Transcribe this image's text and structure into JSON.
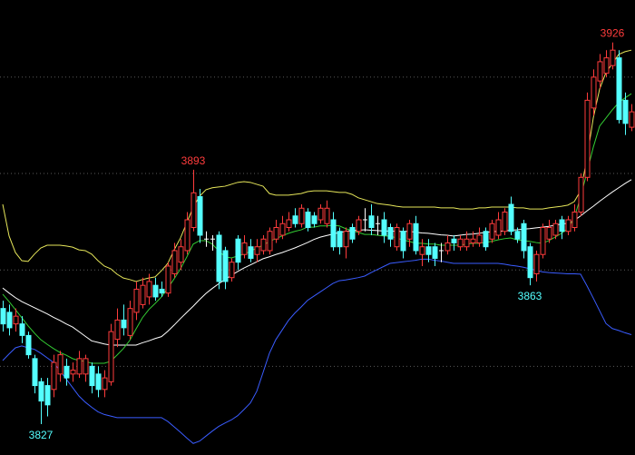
{
  "chart_data": {
    "type": "candlestick",
    "ylim": [
      3819,
      3937
    ],
    "ygrid": [
      3917,
      3892,
      3867,
      3842
    ],
    "grid": true,
    "up_color": "#ff3c3c",
    "down_color": "#54ffff",
    "flat_color": "#ffffff",
    "annotations": [
      3827,
      3893,
      3863,
      3926
    ],
    "ohlc": [
      [
        3857,
        3859,
        3851,
        3853
      ],
      [
        3856,
        3858,
        3850,
        3852
      ],
      [
        3853,
        3857,
        3851,
        3855
      ],
      [
        3853,
        3855,
        3848,
        3850
      ],
      [
        3850,
        3851,
        3844,
        3845
      ],
      [
        3844,
        3845,
        3835,
        3837
      ],
      [
        3838,
        3839,
        3827,
        3833
      ],
      [
        3837,
        3839,
        3829,
        3832
      ],
      [
        3836,
        3845,
        3834,
        3843
      ],
      [
        3840,
        3846,
        3838,
        3845
      ],
      [
        3842,
        3844,
        3837,
        3839
      ],
      [
        3840,
        3843,
        3838,
        3841
      ],
      [
        3840,
        3846,
        3839,
        3844
      ],
      [
        3840,
        3845,
        3838,
        3844
      ],
      [
        3842,
        3843,
        3835,
        3837
      ],
      [
        3840,
        3842,
        3834,
        3836
      ],
      [
        3836,
        3841,
        3834,
        3839
      ],
      [
        3838,
        3853,
        3837,
        3851
      ],
      [
        3849,
        3857,
        3847,
        3854
      ],
      [
        3854,
        3858,
        3850,
        3852
      ],
      [
        3850,
        3859,
        3849,
        3857
      ],
      [
        3856,
        3864,
        3854,
        3862
      ],
      [
        3858,
        3865,
        3857,
        3863
      ],
      [
        3860,
        3866,
        3858,
        3864
      ],
      [
        3863,
        3865,
        3859,
        3860
      ],
      [
        3862,
        3864,
        3860,
        3861
      ],
      [
        3861,
        3869,
        3860,
        3868
      ],
      [
        3866,
        3874,
        3865,
        3872
      ],
      [
        3869,
        3875,
        3867,
        3873
      ],
      [
        3872,
        3882,
        3871,
        3880
      ],
      [
        3878,
        3893,
        3877,
        3887
      ],
      [
        3886,
        3888,
        3874,
        3876
      ],
      [
        3875,
        3877,
        3873,
        3875
      ],
      [
        3875,
        3876,
        3872,
        3875
      ],
      [
        3876,
        3877,
        3862,
        3864
      ],
      [
        3872,
        3873,
        3862,
        3864
      ],
      [
        3865,
        3870,
        3864,
        3869
      ],
      [
        3875,
        3876,
        3867,
        3869
      ],
      [
        3871,
        3876,
        3870,
        3874
      ],
      [
        3873,
        3875,
        3869,
        3870
      ],
      [
        3871,
        3875,
        3869,
        3873
      ],
      [
        3872,
        3876,
        3871,
        3875
      ],
      [
        3872,
        3878,
        3871,
        3877
      ],
      [
        3875,
        3880,
        3874,
        3878
      ],
      [
        3876,
        3881,
        3875,
        3879
      ],
      [
        3878,
        3882,
        3877,
        3880
      ],
      [
        3881,
        3883,
        3878,
        3879
      ],
      [
        3879,
        3884,
        3878,
        3883
      ],
      [
        3882,
        3883,
        3877,
        3878
      ],
      [
        3881,
        3882,
        3878,
        3879
      ],
      [
        3880,
        3884,
        3879,
        3883
      ],
      [
        3879,
        3885,
        3878,
        3883
      ],
      [
        3880,
        3882,
        3872,
        3873
      ],
      [
        3877,
        3878,
        3871,
        3873
      ],
      [
        3873,
        3878,
        3870,
        3877
      ],
      [
        3878,
        3879,
        3874,
        3875
      ],
      [
        3877,
        3881,
        3876,
        3880
      ],
      [
        3880,
        3883,
        3877,
        3880
      ],
      [
        3881,
        3884,
        3876,
        3878
      ],
      [
        3879,
        3881,
        3876,
        3879
      ],
      [
        3880,
        3882,
        3874,
        3876
      ],
      [
        3878,
        3879,
        3873,
        3875
      ],
      [
        3873,
        3879,
        3872,
        3878
      ],
      [
        3877,
        3878,
        3870,
        3872
      ],
      [
        3875,
        3880,
        3873,
        3879
      ],
      [
        3879,
        3881,
        3871,
        3872
      ],
      [
        3871,
        3875,
        3868,
        3873
      ],
      [
        3873,
        3875,
        3869,
        3871
      ],
      [
        3873,
        3874,
        3868,
        3870
      ],
      [
        3872,
        3874,
        3869,
        3872
      ],
      [
        3872,
        3876,
        3871,
        3874
      ],
      [
        3875,
        3876,
        3872,
        3874
      ],
      [
        3873,
        3876,
        3872,
        3875
      ],
      [
        3873,
        3877,
        3872,
        3875
      ],
      [
        3874,
        3877,
        3873,
        3875
      ],
      [
        3874,
        3878,
        3873,
        3876
      ],
      [
        3877,
        3878,
        3872,
        3873
      ],
      [
        3875,
        3880,
        3874,
        3879
      ],
      [
        3876,
        3882,
        3875,
        3880
      ],
      [
        3877,
        3883,
        3876,
        3882
      ],
      [
        3884,
        3886,
        3876,
        3877
      ],
      [
        3877,
        3878,
        3874,
        3875
      ],
      [
        3879,
        3880,
        3870,
        3872
      ],
      [
        3873,
        3874,
        3863,
        3865
      ],
      [
        3866,
        3872,
        3864,
        3871
      ],
      [
        3871,
        3879,
        3870,
        3878
      ],
      [
        3875,
        3880,
        3874,
        3878
      ],
      [
        3876,
        3880,
        3875,
        3879
      ],
      [
        3880,
        3881,
        3875,
        3877
      ],
      [
        3877,
        3881,
        3876,
        3880
      ],
      [
        3878,
        3884,
        3877,
        3882
      ],
      [
        3882,
        3892,
        3881,
        3891
      ],
      [
        3891,
        3913,
        3890,
        3911
      ],
      [
        3909,
        3919,
        3907,
        3917
      ],
      [
        3916,
        3923,
        3914,
        3921
      ],
      [
        3918,
        3924,
        3917,
        3922
      ],
      [
        3920,
        3926,
        3919,
        3924
      ],
      [
        3922,
        3924,
        3905,
        3906
      ],
      [
        3911,
        3913,
        3902,
        3905
      ],
      [
        3904,
        3910,
        3903,
        3908
      ]
    ],
    "lines": [
      {
        "color": "#e6e65a",
        "values": [
          3884.0,
          3875.8,
          3871.5,
          3869.4,
          3869.2,
          3871.1,
          3872.7,
          3873.4,
          3873.4,
          3873.4,
          3873.2,
          3872.9,
          3872.2,
          3872.0,
          3871.1,
          3869.4,
          3868.0,
          3867.3,
          3865.9,
          3864.9,
          3864.5,
          3864.0,
          3864.5,
          3864.9,
          3865.2,
          3866.8,
          3868.7,
          3872.2,
          3875.3,
          3879.3,
          3883.3,
          3886.1,
          3887.8,
          3888.3,
          3888.5,
          3888.7,
          3889.2,
          3889.7,
          3889.9,
          3889.7,
          3889.2,
          3888.7,
          3886.8,
          3886.4,
          3886.4,
          3886.4,
          3886.6,
          3886.8,
          3887.3,
          3887.5,
          3887.5,
          3887.5,
          3887.3,
          3887.1,
          3887.1,
          3886.6,
          3885.7,
          3885.2,
          3884.7,
          3884.2,
          3884.0,
          3883.8,
          3883.5,
          3883.3,
          3883.3,
          3883.3,
          3883.3,
          3883.3,
          3883.3,
          3883.1,
          3883.1,
          3883.1,
          3882.8,
          3882.8,
          3882.8,
          3883.1,
          3883.1,
          3883.3,
          3883.3,
          3883.3,
          3883.3,
          3883.1,
          3883.1,
          3882.8,
          3882.8,
          3882.8,
          3883.1,
          3883.3,
          3883.5,
          3883.8,
          3884.7,
          3887.5,
          3895.8,
          3906.4,
          3913.9,
          3918.2,
          3920.5,
          3922.9,
          3923.6,
          3924.0
        ]
      },
      {
        "color": "#ffffff",
        "values": [
          3862.3,
          3861.0,
          3859.8,
          3858.8,
          3858.0,
          3857.2,
          3856.4,
          3855.6,
          3854.7,
          3853.9,
          3853.0,
          3852.2,
          3851.0,
          3849.8,
          3848.6,
          3848.2,
          3847.8,
          3847.5,
          3847.5,
          3847.5,
          3847.5,
          3847.5,
          3848.1,
          3848.6,
          3849.2,
          3849.7,
          3851.1,
          3852.7,
          3854.4,
          3856.0,
          3857.6,
          3859.3,
          3860.9,
          3862.2,
          3863.4,
          3864.5,
          3865.6,
          3866.6,
          3867.5,
          3868.3,
          3869.1,
          3869.9,
          3870.4,
          3871.0,
          3871.5,
          3872.1,
          3872.7,
          3873.4,
          3874.1,
          3874.9,
          3875.5,
          3875.9,
          3876.3,
          3876.7,
          3877.0,
          3877.2,
          3877.3,
          3877.4,
          3877.3,
          3877.2,
          3877.1,
          3877.1,
          3877.0,
          3877.0,
          3877.0,
          3876.8,
          3876.6,
          3876.5,
          3876.3,
          3876.1,
          3876.0,
          3875.8,
          3876.0,
          3876.2,
          3876.3,
          3876.5,
          3876.7,
          3876.9,
          3877.0,
          3877.1,
          3877.3,
          3877.4,
          3877.6,
          3877.7,
          3877.9,
          3878.1,
          3878.3,
          3878.6,
          3878.9,
          3879.1,
          3879.8,
          3881.0,
          3882.3,
          3883.5,
          3884.8,
          3886.0,
          3887.2,
          3888.3,
          3889.4,
          3890.4
        ]
      },
      {
        "color": "#3a5cff",
        "values": [
          3843.5,
          3845.2,
          3846.8,
          3847.3,
          3846.8,
          3846.4,
          3845.4,
          3844.2,
          3843.0,
          3840.9,
          3838.7,
          3836.5,
          3834.3,
          3832.7,
          3831.4,
          3830.2,
          3829.5,
          3829.1,
          3828.7,
          3828.7,
          3828.7,
          3828.7,
          3828.7,
          3828.7,
          3828.7,
          3828.7,
          3827.7,
          3826.3,
          3824.9,
          3823.4,
          3822.0,
          3822.6,
          3823.9,
          3825.2,
          3826.4,
          3827.3,
          3828.1,
          3829.2,
          3830.8,
          3832.5,
          3835.5,
          3840.4,
          3845.4,
          3848.9,
          3851.4,
          3853.9,
          3855.8,
          3857.4,
          3859.1,
          3860.2,
          3861.3,
          3862.4,
          3863.5,
          3864.2,
          3864.4,
          3864.7,
          3865.0,
          3865.4,
          3866.3,
          3867.1,
          3867.9,
          3868.7,
          3868.9,
          3869.1,
          3869.3,
          3869.5,
          3869.8,
          3869.8,
          3869.5,
          3869.3,
          3869.0,
          3868.7,
          3868.7,
          3868.7,
          3868.7,
          3868.7,
          3868.7,
          3868.7,
          3868.7,
          3868.5,
          3868.2,
          3868.0,
          3867.7,
          3867.3,
          3866.9,
          3866.5,
          3866.3,
          3866.2,
          3866.1,
          3866.0,
          3866.0,
          3865.9,
          3862.9,
          3859.7,
          3856.4,
          3853.1,
          3851.8,
          3851.3,
          3850.7,
          3850.2
        ]
      },
      {
        "color": "#33cc33",
        "values": [
          3860.7,
          3858.8,
          3856.7,
          3854.6,
          3852.5,
          3850.6,
          3848.9,
          3847.7,
          3846.6,
          3845.6,
          3844.9,
          3844.0,
          3843.5,
          3843.3,
          3842.8,
          3842.8,
          3842.8,
          3843.3,
          3844.9,
          3846.6,
          3848.7,
          3851.7,
          3854.6,
          3856.7,
          3858.3,
          3860.0,
          3862.3,
          3864.7,
          3867.3,
          3870.4,
          3873.7,
          3874.6,
          3874.6,
          3873.7,
          3872.0,
          3870.4,
          3870.1,
          3870.6,
          3871.1,
          3871.8,
          3872.7,
          3873.4,
          3874.4,
          3875.1,
          3875.8,
          3876.5,
          3877.0,
          3877.4,
          3878.1,
          3878.1,
          3878.4,
          3878.4,
          3878.6,
          3878.4,
          3877.7,
          3877.2,
          3876.7,
          3876.2,
          3876.2,
          3876.0,
          3875.8,
          3875.8,
          3875.3,
          3874.8,
          3874.4,
          3873.9,
          3873.9,
          3873.7,
          3873.7,
          3873.4,
          3873.4,
          3873.4,
          3873.4,
          3873.7,
          3873.9,
          3873.9,
          3874.1,
          3874.4,
          3874.8,
          3875.1,
          3875.3,
          3874.8,
          3874.6,
          3874.4,
          3874.1,
          3873.9,
          3874.6,
          3875.5,
          3876.5,
          3877.7,
          3880.5,
          3885.9,
          3892.3,
          3898.8,
          3904.3,
          3906.4,
          3908.5,
          3910.4,
          3911.6,
          3912.7
        ]
      }
    ]
  }
}
